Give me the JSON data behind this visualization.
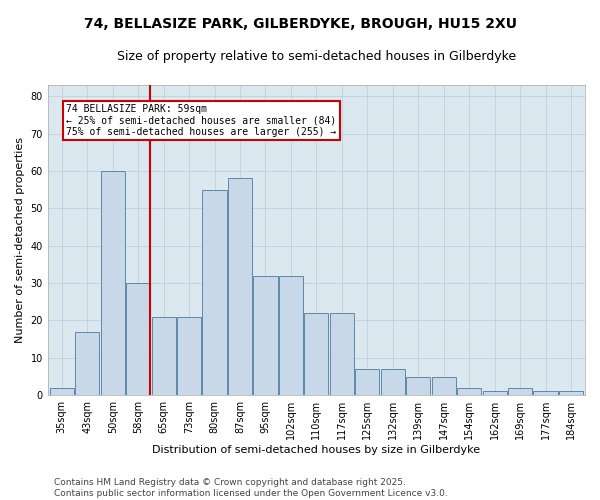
{
  "title": "74, BELLASIZE PARK, GILBERDYKE, BROUGH, HU15 2XU",
  "subtitle": "Size of property relative to semi-detached houses in Gilberdyke",
  "xlabel": "Distribution of semi-detached houses by size in Gilberdyke",
  "ylabel": "Number of semi-detached properties",
  "categories": [
    "35sqm",
    "43sqm",
    "50sqm",
    "58sqm",
    "65sqm",
    "73sqm",
    "80sqm",
    "87sqm",
    "95sqm",
    "102sqm",
    "110sqm",
    "117sqm",
    "125sqm",
    "132sqm",
    "139sqm",
    "147sqm",
    "154sqm",
    "162sqm",
    "169sqm",
    "177sqm",
    "184sqm"
  ],
  "values": [
    2,
    17,
    60,
    30,
    21,
    21,
    55,
    58,
    32,
    32,
    22,
    22,
    7,
    7,
    5,
    5,
    2,
    1,
    2,
    1,
    1
  ],
  "bar_color": "#c8d8e8",
  "bar_edge_color": "#5a8aaa",
  "red_line_index": 3,
  "annotation_title": "74 BELLASIZE PARK: 59sqm",
  "annotation_line1": "← 25% of semi-detached houses are smaller (84)",
  "annotation_line2": "75% of semi-detached houses are larger (255) →",
  "annotation_box_color": "#ffffff",
  "annotation_box_edge": "#cc0000",
  "red_line_color": "#cc0000",
  "footer_line1": "Contains HM Land Registry data © Crown copyright and database right 2025.",
  "footer_line2": "Contains public sector information licensed under the Open Government Licence v3.0.",
  "ylim": [
    0,
    83
  ],
  "yticks": [
    0,
    10,
    20,
    30,
    40,
    50,
    60,
    70,
    80
  ],
  "bg_color": "#ffffff",
  "plot_bg_color": "#dce8f0",
  "grid_color": "#b8ccd8",
  "title_fontsize": 10,
  "subtitle_fontsize": 9,
  "axis_label_fontsize": 8,
  "tick_fontsize": 7,
  "footer_fontsize": 6.5,
  "annotation_fontsize": 7
}
